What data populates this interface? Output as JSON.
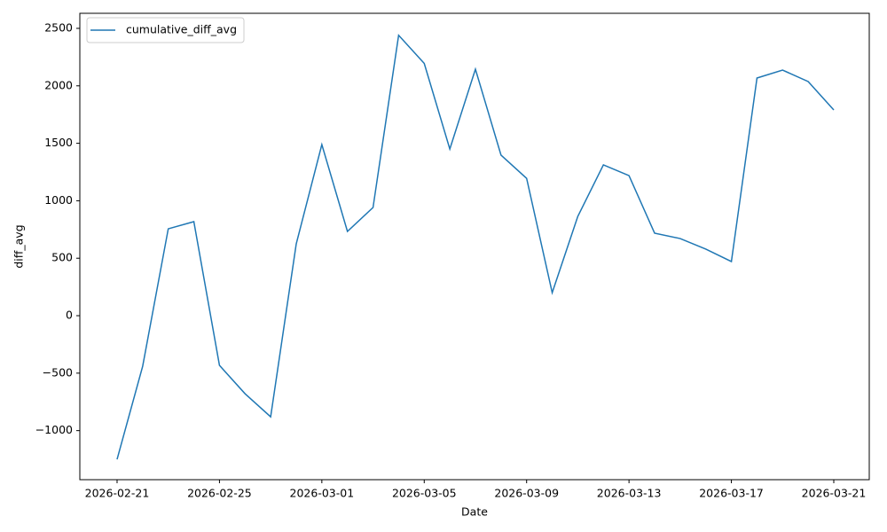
{
  "chart_data": {
    "type": "line",
    "xlabel": "Date",
    "ylabel": "diff_avg",
    "x": [
      "2026-02-21",
      "2026-02-22",
      "2026-02-23",
      "2026-02-24",
      "2026-02-25",
      "2026-02-26",
      "2026-02-27",
      "2026-02-28",
      "2026-03-01",
      "2026-03-02",
      "2026-03-03",
      "2026-03-04",
      "2026-03-05",
      "2026-03-06",
      "2026-03-07",
      "2026-03-08",
      "2026-03-09",
      "2026-03-10",
      "2026-03-11",
      "2026-03-12",
      "2026-03-13",
      "2026-03-14",
      "2026-03-15",
      "2026-03-16",
      "2026-03-17",
      "2026-03-18",
      "2026-03-19",
      "2026-03-20",
      "2026-03-21"
    ],
    "series": [
      {
        "name": "cumulative_diff_avg",
        "color": "#1f77b4",
        "values": [
          -1250,
          -440,
          756,
          818,
          -432,
          -679,
          -880,
          625,
          1489,
          733,
          941,
          2440,
          2195,
          1450,
          2145,
          1397,
          1195,
          200,
          864,
          1312,
          1219,
          718,
          671,
          579,
          471,
          2068,
          2137,
          2037,
          1790
        ]
      }
    ],
    "xlim": [
      "2026-02-19T13:05",
      "2026-03-22T09:16"
    ],
    "xticks": [
      "2026-02-21",
      "2026-02-25",
      "2026-03-01",
      "2026-03-05",
      "2026-03-09",
      "2026-03-13",
      "2026-03-17",
      "2026-03-21"
    ],
    "ylim": [
      -1427,
      2631
    ],
    "yticks": [
      {
        "value": -1000,
        "label": "−1000"
      },
      {
        "value": -500,
        "label": "−500"
      },
      0,
      500,
      1000,
      1500,
      2000,
      2500
    ],
    "grid": false,
    "legend": "upper left"
  }
}
